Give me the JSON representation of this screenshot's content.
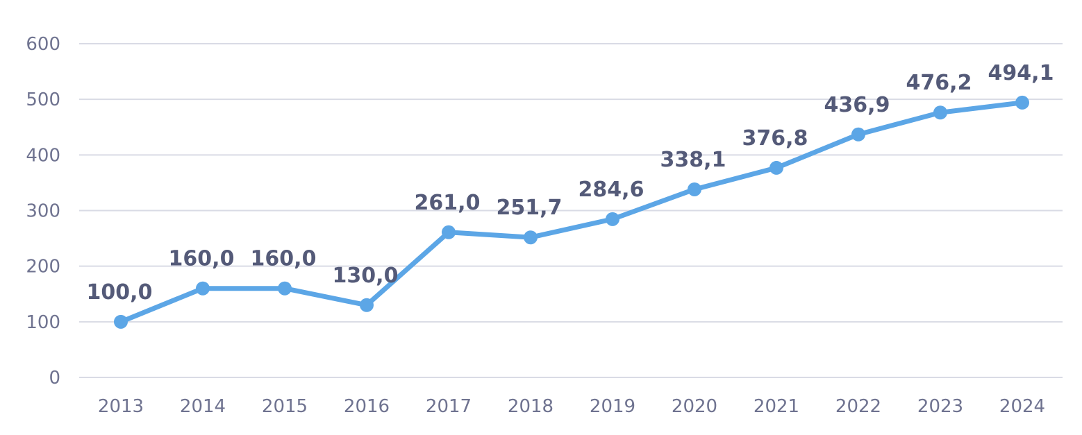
{
  "chart_data": {
    "type": "line",
    "title": "",
    "xlabel": "",
    "ylabel": "",
    "categories": [
      "2013",
      "2014",
      "2015",
      "2016",
      "2017",
      "2018",
      "2019",
      "2020",
      "2021",
      "2022",
      "2023",
      "2024"
    ],
    "series": [
      {
        "values": [
          100.0,
          160.0,
          160.0,
          130.0,
          261.0,
          251.7,
          284.6,
          338.1,
          376.8,
          436.9,
          476.2,
          494.1
        ],
        "labels": [
          "100,0",
          "160,0",
          "160,0",
          "130,0",
          "261,0",
          "251,7",
          "284,6",
          "338,1",
          "376,8",
          "436,9",
          "476,2",
          "494,1"
        ],
        "color": "#5ca6e6"
      }
    ],
    "yticks": [
      "0",
      "100",
      "200",
      "300",
      "400",
      "500",
      "600"
    ],
    "ylim": [
      0,
      600
    ],
    "grid": true,
    "legend": "none",
    "colors": {
      "line": "#5ca6e6",
      "grid": "#d9dbe5",
      "tick_text": "#6f7390",
      "data_label_text": "#545a78"
    }
  }
}
